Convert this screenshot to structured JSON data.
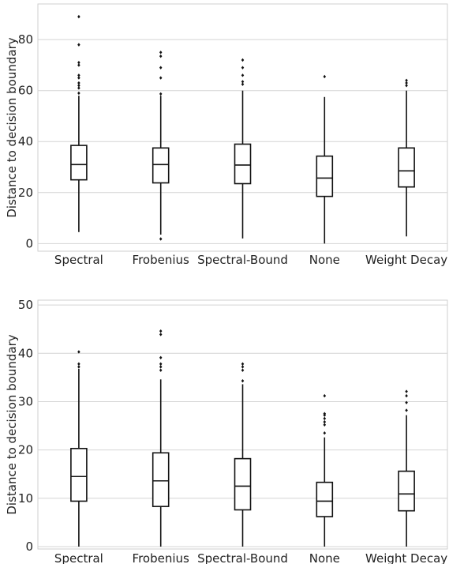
{
  "chart_data": [
    {
      "type": "box",
      "categories": [
        "Spectral",
        "Frobenius",
        "Spectral-Bound",
        "None",
        "Weight Decay"
      ],
      "ylabel": "Distance to decision boundary",
      "ylim": [
        -3,
        94
      ],
      "yticks": [
        0,
        20,
        40,
        60,
        80
      ],
      "grid": true,
      "boxes": [
        {
          "category": "Spectral",
          "whisker_low": 4.5,
          "q1": 25,
          "median": 31,
          "q3": 38.5,
          "whisker_high": 58,
          "outliers": [
            59,
            61,
            62,
            63,
            65,
            66,
            70,
            71,
            78,
            89
          ]
        },
        {
          "category": "Frobenius",
          "whisker_low": 3.5,
          "q1": 23.8,
          "median": 31,
          "q3": 37.5,
          "whisker_high": 58,
          "outliers": [
            1.8,
            58.7,
            65,
            69,
            73.5,
            75
          ]
        },
        {
          "category": "Spectral-Bound",
          "whisker_low": 2,
          "q1": 23.5,
          "median": 30.8,
          "q3": 39,
          "whisker_high": 60,
          "outliers": [
            62.5,
            63.5,
            66,
            69,
            72
          ]
        },
        {
          "category": "None",
          "whisker_low": 0,
          "q1": 18.5,
          "median": 25.7,
          "q3": 34.3,
          "whisker_high": 57.5,
          "outliers": [
            65.5
          ]
        },
        {
          "category": "Weight Decay",
          "whisker_low": 2.8,
          "q1": 22.2,
          "median": 28.5,
          "q3": 37.5,
          "whisker_high": 60,
          "outliers": [
            62,
            63,
            64
          ]
        }
      ]
    },
    {
      "type": "box",
      "categories": [
        "Spectral",
        "Frobenius",
        "Spectral-Bound",
        "None",
        "Weight Decay"
      ],
      "ylabel": "Distance to decision boundary",
      "ylim": [
        -0.5,
        51
      ],
      "yticks": [
        0,
        10,
        20,
        30,
        40,
        50
      ],
      "grid": true,
      "boxes": [
        {
          "category": "Spectral",
          "whisker_low": 0,
          "q1": 9.4,
          "median": 14.5,
          "q3": 20.3,
          "whisker_high": 36.8,
          "outliers": [
            37.2,
            37.8,
            40.3
          ]
        },
        {
          "category": "Frobenius",
          "whisker_low": 0,
          "q1": 8.3,
          "median": 13.6,
          "q3": 19.4,
          "whisker_high": 34.6,
          "outliers": [
            36.5,
            37.2,
            37.8,
            39.1,
            43.9,
            44.6
          ]
        },
        {
          "category": "Spectral-Bound",
          "whisker_low": 0,
          "q1": 7.6,
          "median": 12.5,
          "q3": 18.2,
          "whisker_high": 33.6,
          "outliers": [
            34.3,
            36.5,
            37.2,
            37.8
          ]
        },
        {
          "category": "None",
          "whisker_low": 0,
          "q1": 6.2,
          "median": 9.4,
          "q3": 13.3,
          "whisker_high": 22.6,
          "outliers": [
            23.5,
            25.2,
            25.8,
            26.5,
            27.2,
            27.5,
            31.2
          ]
        },
        {
          "category": "Weight Decay",
          "whisker_low": 0,
          "q1": 7.4,
          "median": 10.9,
          "q3": 15.6,
          "whisker_high": 27.2,
          "outliers": [
            28.2,
            29.8,
            31.2,
            32.1
          ]
        }
      ]
    }
  ],
  "colors": {
    "grid": "#d4d4d4",
    "axes": "#cfcfcf",
    "box": "#111111",
    "text": "#222222"
  }
}
